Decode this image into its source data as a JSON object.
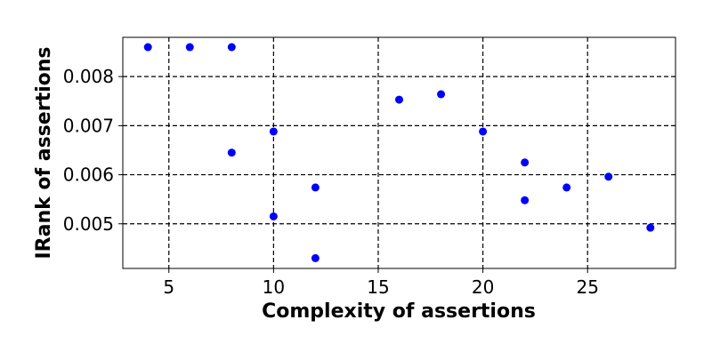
{
  "chart_data": {
    "type": "scatter",
    "title": "",
    "xlabel": "Complexity of assertions",
    "ylabel": "IRank of assertions",
    "xlim": [
      2.8,
      29.2
    ],
    "ylim": [
      0.00409,
      0.0088
    ],
    "x_ticks": [
      5,
      10,
      15,
      20,
      25
    ],
    "y_ticks": [
      0.005,
      0.006,
      0.007,
      0.008
    ],
    "x_tick_labels": [
      "5",
      "10",
      "15",
      "20",
      "25"
    ],
    "y_tick_labels": [
      "0.005",
      "0.006",
      "0.007",
      "0.008"
    ],
    "grid": true,
    "grid_style": "dashed",
    "legend": "none",
    "marker_color": "#0000ff",
    "series": [
      {
        "x": [
          4,
          6,
          8,
          8,
          10,
          10,
          12,
          12,
          16,
          18,
          20,
          22,
          22,
          24,
          26,
          28
        ],
        "y": [
          0.0086,
          0.0086,
          0.0086,
          0.00645,
          0.00688,
          0.00515,
          0.00574,
          0.0043,
          0.00753,
          0.00764,
          0.00688,
          0.00625,
          0.00548,
          0.00574,
          0.00596,
          0.00492
        ]
      }
    ]
  }
}
